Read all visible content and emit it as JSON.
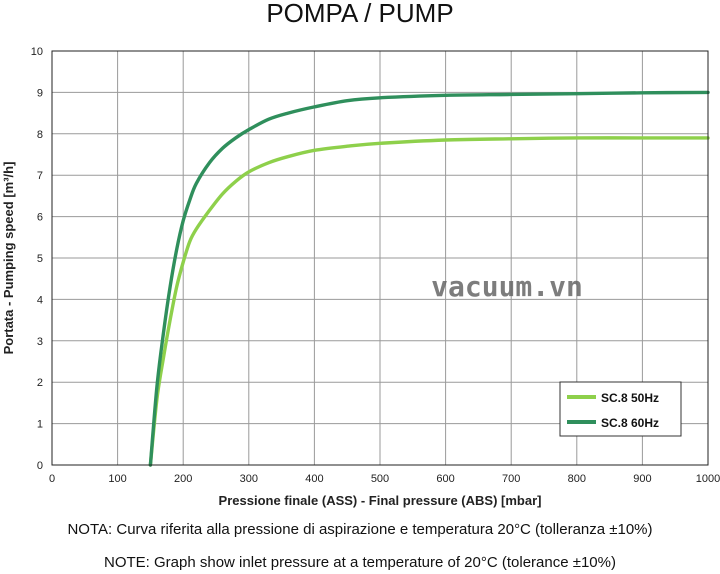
{
  "chart_data": {
    "type": "line",
    "title": "POMPA / PUMP",
    "xlabel": "Pressione finale (ASS) - Final pressure (ABS) [mbar]",
    "ylabel": "Portata - Pumping speed [m³/h]",
    "xlim": [
      0,
      1000
    ],
    "ylim": [
      0,
      10
    ],
    "xticks": [
      "0",
      "100",
      "200",
      "300",
      "400",
      "500",
      "600",
      "700",
      "800",
      "900",
      "1000"
    ],
    "yticks": [
      "0",
      "1",
      "2",
      "3",
      "4",
      "5",
      "6",
      "7",
      "8",
      "9",
      "10"
    ],
    "grid": true,
    "legend_position": "bottom-right",
    "series": [
      {
        "name": "SC.8 50Hz",
        "color": "#8ed04b",
        "x": [
          150,
          160,
          170,
          180,
          190,
          200,
          210,
          220,
          240,
          260,
          280,
          300,
          330,
          360,
          400,
          450,
          500,
          600,
          700,
          800,
          900,
          1000
        ],
        "y": [
          0,
          1.6,
          2.6,
          3.5,
          4.3,
          4.9,
          5.4,
          5.7,
          6.15,
          6.55,
          6.85,
          7.08,
          7.3,
          7.45,
          7.6,
          7.7,
          7.77,
          7.85,
          7.88,
          7.9,
          7.9,
          7.9
        ]
      },
      {
        "name": "SC.8 60Hz",
        "color": "#2f8f5c",
        "x": [
          150,
          160,
          170,
          180,
          190,
          200,
          210,
          220,
          240,
          260,
          280,
          300,
          330,
          360,
          400,
          450,
          500,
          600,
          700,
          800,
          900,
          1000
        ],
        "y": [
          0,
          1.9,
          3.2,
          4.3,
          5.2,
          5.9,
          6.4,
          6.8,
          7.3,
          7.65,
          7.9,
          8.1,
          8.35,
          8.5,
          8.65,
          8.8,
          8.87,
          8.93,
          8.95,
          8.97,
          8.99,
          9.0
        ]
      }
    ]
  },
  "watermark": "vacuum.vn",
  "notes": {
    "it": "NOTA:  Curva riferita alla pressione di aspirazione e temperatura 20°C (tolleranza ±10%)",
    "en": "NOTE:  Graph show inlet pressure at a temperature of 20°C (tolerance ±10%)"
  }
}
